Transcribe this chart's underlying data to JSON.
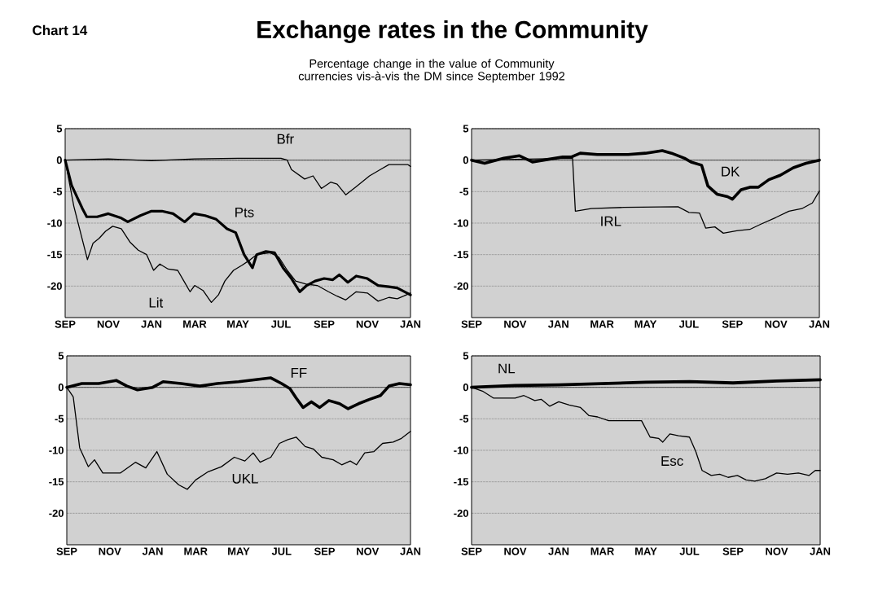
{
  "chart_data": [
    {
      "type": "line",
      "title": "Exchange rates in the Community",
      "subtitle": "Percentage change in the value of Community currencies vis-à-vis the DM since September 1992",
      "annotations": [
        "Chart 14"
      ],
      "xlim": [
        "1992-09-01",
        "1994-01-01"
      ],
      "xticks": [
        {
          "value": "1992-09-01",
          "label": "SEP"
        },
        {
          "value": "1992-11-01",
          "label": "NOV"
        },
        {
          "value": "1993-01-01",
          "label": "JAN"
        },
        {
          "value": "1993-03-01",
          "label": "MAR"
        },
        {
          "value": "1993-05-01",
          "label": "MAY"
        },
        {
          "value": "1993-07-01",
          "label": "JUL"
        },
        {
          "value": "1993-09-01",
          "label": "SEP"
        },
        {
          "value": "1993-11-01",
          "label": "NOV"
        },
        {
          "value": "1994-01-01",
          "label": "JAN"
        }
      ],
      "ylim": [
        -25,
        5
      ],
      "yticks": [
        5,
        0,
        -5,
        -10,
        -15,
        -20
      ],
      "grid": "y",
      "ref_lines": [
        {
          "axis": "y",
          "value": 0,
          "color": "#000000"
        }
      ],
      "series": [
        {
          "name": "Bfr",
          "color": "#000000",
          "x": [
            "1992-09-01",
            "1992-11-01",
            "1993-01-01",
            "1993-03-01",
            "1993-05-01",
            "1993-07-01",
            "1993-07-10",
            "1993-07-16",
            "1993-08-04",
            "1993-08-16",
            "1993-08-28",
            "1993-09-10",
            "1993-09-19",
            "1993-10-01",
            "1993-10-16",
            "1993-11-04",
            "1993-11-19",
            "1993-12-01",
            "1993-12-28",
            "1994-01-01"
          ],
          "values": [
            0,
            0.2,
            -0.1,
            0.2,
            0.3,
            0.3,
            0,
            -1.5,
            -3,
            -2.5,
            -4.5,
            -3.5,
            -3.8,
            -5.5,
            -4.2,
            -2.5,
            -1.5,
            -0.7,
            -0.7,
            -1
          ]
        },
        {
          "name": "Pts",
          "color": "#000000",
          "x": [
            "1992-09-01",
            "1992-09-10",
            "1992-09-25",
            "1992-10-01",
            "1992-10-16",
            "1992-11-01",
            "1992-11-19",
            "1992-11-28",
            "1992-12-16",
            "1993-01-01",
            "1993-01-16",
            "1993-02-01",
            "1993-02-16",
            "1993-02-28",
            "1993-03-16",
            "1993-04-01",
            "1993-04-16",
            "1993-04-28",
            "1993-05-10",
            "1993-05-22",
            "1993-05-28",
            "1993-06-10",
            "1993-06-22",
            "1993-07-04",
            "1993-07-16",
            "1993-07-28",
            "1993-08-07",
            "1993-08-19",
            "1993-09-01",
            "1993-09-13",
            "1993-09-22",
            "1993-10-04",
            "1993-10-16",
            "1993-11-01",
            "1993-11-16",
            "1993-12-01",
            "1993-12-13",
            "1994-01-01"
          ],
          "values": [
            0,
            -4,
            -7.7,
            -9,
            -9,
            -8.5,
            -9.2,
            -9.8,
            -8.8,
            -8.1,
            -8.1,
            -8.5,
            -9.8,
            -8.5,
            -8.8,
            -9.4,
            -10.9,
            -11.5,
            -15,
            -17.1,
            -15,
            -14.5,
            -14.7,
            -17.1,
            -18.8,
            -20.9,
            -19.9,
            -19.2,
            -18.8,
            -19,
            -18.2,
            -19.4,
            -18.4,
            -18.8,
            -19.9,
            -20.1,
            -20.3,
            -21.4
          ]
        },
        {
          "name": "Lit",
          "color": "#000000",
          "x": [
            "1992-09-01",
            "1992-09-13",
            "1992-10-02",
            "1992-10-10",
            "1992-10-19",
            "1992-10-28",
            "1992-11-07",
            "1992-11-19",
            "1992-12-01",
            "1992-12-13",
            "1992-12-25",
            "1993-01-04",
            "1993-01-13",
            "1993-01-25",
            "1993-02-07",
            "1993-02-15",
            "1993-02-23",
            "1993-03-01",
            "1993-03-13",
            "1993-03-25",
            "1993-04-04",
            "1993-04-13",
            "1993-04-25",
            "1993-05-07",
            "1993-05-19",
            "1993-05-28",
            "1993-06-16",
            "1993-06-28",
            "1993-07-10",
            "1993-07-22",
            "1993-08-07",
            "1993-08-22",
            "1993-09-07",
            "1993-09-19",
            "1993-10-01",
            "1993-10-16",
            "1993-11-01",
            "1993-11-16",
            "1993-12-01",
            "1993-12-13",
            "1993-12-22",
            "1994-01-01"
          ],
          "values": [
            0,
            -7.3,
            -15.8,
            -13.2,
            -12.4,
            -11.3,
            -10.5,
            -10.9,
            -13,
            -14.3,
            -15,
            -17.5,
            -16.5,
            -17.3,
            -17.5,
            -19.2,
            -20.9,
            -19.9,
            -20.7,
            -22.6,
            -21.4,
            -19.2,
            -17.5,
            -16.7,
            -15.8,
            -15,
            -14.7,
            -15.4,
            -17.5,
            -19.2,
            -19.7,
            -19.9,
            -20.9,
            -21.6,
            -22.2,
            -20.9,
            -21.1,
            -22.4,
            -21.8,
            -22,
            -21.6,
            -21.1
          ]
        }
      ]
    },
    {
      "type": "line",
      "xlim": [
        "1992-09-01",
        "1994-01-01"
      ],
      "xticks": [
        {
          "value": "1992-09-01",
          "label": "SEP"
        },
        {
          "value": "1992-11-01",
          "label": "NOV"
        },
        {
          "value": "1993-01-01",
          "label": "JAN"
        },
        {
          "value": "1993-03-01",
          "label": "MAR"
        },
        {
          "value": "1993-05-01",
          "label": "MAY"
        },
        {
          "value": "1993-07-01",
          "label": "JUL"
        },
        {
          "value": "1993-09-01",
          "label": "SEP"
        },
        {
          "value": "1993-11-01",
          "label": "NOV"
        },
        {
          "value": "1994-01-01",
          "label": "JAN"
        }
      ],
      "ylim": [
        -25,
        5
      ],
      "yticks": [
        5,
        0,
        -5,
        -10,
        -15,
        -20
      ],
      "grid": "y",
      "ref_lines": [
        {
          "axis": "y",
          "value": 0,
          "color": "#000000"
        }
      ],
      "series": [
        {
          "name": "DK",
          "color": "#000000",
          "x": [
            "1992-09-01",
            "1992-09-19",
            "1992-10-16",
            "1992-11-07",
            "1992-11-25",
            "1992-12-16",
            "1993-01-07",
            "1993-01-19",
            "1993-02-01",
            "1993-02-23",
            "1993-03-16",
            "1993-04-07",
            "1993-05-01",
            "1993-05-25",
            "1993-06-07",
            "1993-06-25",
            "1993-07-04",
            "1993-07-19",
            "1993-07-28",
            "1993-08-10",
            "1993-08-25",
            "1993-09-01",
            "1993-09-13",
            "1993-09-25",
            "1993-10-07",
            "1993-10-22",
            "1993-11-07",
            "1993-11-25",
            "1993-12-13",
            "1994-01-01"
          ],
          "values": [
            0,
            -0.5,
            0.3,
            0.7,
            -0.3,
            0.1,
            0.5,
            0.5,
            1.1,
            0.9,
            0.9,
            0.9,
            1.1,
            1.5,
            1.1,
            0.3,
            -0.3,
            -0.8,
            -4.1,
            -5.4,
            -5.8,
            -6.2,
            -4.7,
            -4.3,
            -4.3,
            -3.1,
            -2.4,
            -1.2,
            -0.5,
            0
          ]
        },
        {
          "name": "IRL",
          "color": "#000000",
          "x": [
            "1992-09-01",
            "1993-01-21",
            "1993-01-25",
            "1993-02-15",
            "1993-04-01",
            "1993-06-16",
            "1993-07-01",
            "1993-07-16",
            "1993-07-25",
            "1993-08-07",
            "1993-08-19",
            "1993-09-07",
            "1993-09-25",
            "1993-10-10",
            "1993-11-01",
            "1993-11-19",
            "1993-12-07",
            "1993-12-22",
            "1994-01-01"
          ],
          "values": [
            0,
            0.3,
            -8.1,
            -7.7,
            -7.5,
            -7.4,
            -8.3,
            -8.4,
            -10.8,
            -10.6,
            -11.6,
            -11.2,
            -11,
            -10.2,
            -9.1,
            -8.1,
            -7.7,
            -6.8,
            -4.9
          ]
        }
      ]
    },
    {
      "type": "line",
      "xlim": [
        "1992-09-01",
        "1994-01-01"
      ],
      "xticks": [
        {
          "value": "1992-09-01",
          "label": "SEP"
        },
        {
          "value": "1992-11-01",
          "label": "NOV"
        },
        {
          "value": "1993-01-01",
          "label": "JAN"
        },
        {
          "value": "1993-03-01",
          "label": "MAR"
        },
        {
          "value": "1993-05-01",
          "label": "MAY"
        },
        {
          "value": "1993-07-01",
          "label": "JUL"
        },
        {
          "value": "1993-09-01",
          "label": "SEP"
        },
        {
          "value": "1993-11-01",
          "label": "NOV"
        },
        {
          "value": "1994-01-01",
          "label": "JAN"
        }
      ],
      "ylim": [
        -25,
        5
      ],
      "yticks": [
        5,
        0,
        -5,
        -10,
        -15,
        -20
      ],
      "grid": "y",
      "ref_lines": [
        {
          "axis": "y",
          "value": 0,
          "color": "#000000"
        }
      ],
      "series": [
        {
          "name": "FF",
          "color": "#000000",
          "x": [
            "1992-09-01",
            "1992-09-22",
            "1992-10-16",
            "1992-11-10",
            "1992-11-25",
            "1992-12-10",
            "1993-01-01",
            "1993-01-16",
            "1993-02-10",
            "1993-03-07",
            "1993-04-01",
            "1993-05-01",
            "1993-06-01",
            "1993-06-16",
            "1993-07-01",
            "1993-07-13",
            "1993-07-22",
            "1993-08-01",
            "1993-08-13",
            "1993-08-25",
            "1993-09-07",
            "1993-09-22",
            "1993-10-04",
            "1993-10-19",
            "1993-11-04",
            "1993-11-19",
            "1993-12-01",
            "1993-12-16",
            "1994-01-01"
          ],
          "values": [
            0,
            0.6,
            0.6,
            1.1,
            0.2,
            -0.4,
            0,
            0.9,
            0.6,
            0.2,
            0.6,
            0.9,
            1.3,
            1.5,
            0.6,
            -0.2,
            -1.7,
            -3.2,
            -2.3,
            -3.2,
            -2.1,
            -2.6,
            -3.4,
            -2.6,
            -1.9,
            -1.3,
            0.2,
            0.6,
            0.4
          ]
        },
        {
          "name": "UKL",
          "color": "#000000",
          "x": [
            "1992-09-01",
            "1992-09-10",
            "1992-09-19",
            "1992-10-01",
            "1992-10-10",
            "1992-10-22",
            "1992-11-16",
            "1992-12-07",
            "1992-12-22",
            "1993-01-07",
            "1993-01-22",
            "1993-02-07",
            "1993-02-18",
            "1993-03-01",
            "1993-03-19",
            "1993-04-07",
            "1993-04-25",
            "1993-05-10",
            "1993-05-22",
            "1993-06-01",
            "1993-06-16",
            "1993-06-28",
            "1993-07-10",
            "1993-07-22",
            "1993-08-04",
            "1993-08-16",
            "1993-08-28",
            "1993-09-13",
            "1993-09-25",
            "1993-10-07",
            "1993-10-16",
            "1993-10-28",
            "1993-11-10",
            "1993-11-22",
            "1993-12-07",
            "1993-12-19",
            "1994-01-01"
          ],
          "values": [
            0,
            -1.5,
            -9.6,
            -12.6,
            -11.5,
            -13.6,
            -13.6,
            -11.9,
            -12.8,
            -10.2,
            -13.8,
            -15.5,
            -16.2,
            -14.7,
            -13.4,
            -12.6,
            -11.1,
            -11.7,
            -10.4,
            -11.9,
            -11.1,
            -8.9,
            -8.3,
            -7.9,
            -9.4,
            -9.8,
            -11.1,
            -11.5,
            -12.3,
            -11.7,
            -12.3,
            -10.4,
            -10.2,
            -8.9,
            -8.7,
            -8.1,
            -7
          ]
        }
      ]
    },
    {
      "type": "line",
      "xlim": [
        "1992-09-01",
        "1994-01-01"
      ],
      "xticks": [
        {
          "value": "1992-09-01",
          "label": "SEP"
        },
        {
          "value": "1992-11-01",
          "label": "NOV"
        },
        {
          "value": "1993-01-01",
          "label": "JAN"
        },
        {
          "value": "1993-03-01",
          "label": "MAR"
        },
        {
          "value": "1993-05-01",
          "label": "MAY"
        },
        {
          "value": "1993-07-01",
          "label": "JUL"
        },
        {
          "value": "1993-09-01",
          "label": "SEP"
        },
        {
          "value": "1993-11-01",
          "label": "NOV"
        },
        {
          "value": "1994-01-01",
          "label": "JAN"
        }
      ],
      "ylim": [
        -25,
        5
      ],
      "yticks": [
        5,
        0,
        -5,
        -10,
        -15,
        -20
      ],
      "grid": "y",
      "ref_lines": [
        {
          "axis": "y",
          "value": 0,
          "color": "#000000"
        }
      ],
      "series": [
        {
          "name": "NL",
          "color": "#000000",
          "x": [
            "1992-09-01",
            "1992-11-01",
            "1993-01-01",
            "1993-03-01",
            "1993-05-01",
            "1993-07-01",
            "1993-09-01",
            "1993-11-01",
            "1994-01-01"
          ],
          "values": [
            0,
            0.3,
            0.4,
            0.6,
            0.8,
            0.9,
            0.7,
            1.0,
            1.2
          ]
        },
        {
          "name": "Esc",
          "color": "#000000",
          "x": [
            "1992-09-01",
            "1992-09-16",
            "1992-10-01",
            "1992-11-01",
            "1992-11-13",
            "1992-11-28",
            "1992-12-07",
            "1992-12-19",
            "1993-01-01",
            "1993-01-16",
            "1993-02-01",
            "1993-02-12",
            "1993-02-23",
            "1993-03-10",
            "1993-04-01",
            "1993-04-25",
            "1993-05-07",
            "1993-05-19",
            "1993-05-25",
            "1993-06-04",
            "1993-06-16",
            "1993-07-01",
            "1993-07-10",
            "1993-07-19",
            "1993-08-01",
            "1993-08-13",
            "1993-08-25",
            "1993-09-07",
            "1993-09-19",
            "1993-10-01",
            "1993-10-16",
            "1993-11-01",
            "1993-11-16",
            "1993-12-01",
            "1993-12-16",
            "1993-12-25",
            "1994-01-01"
          ],
          "values": [
            0,
            -0.6,
            -1.7,
            -1.7,
            -1.3,
            -2.1,
            -1.9,
            -3,
            -2.3,
            -2.8,
            -3.2,
            -4.5,
            -4.7,
            -5.3,
            -5.3,
            -5.3,
            -7.9,
            -8.1,
            -8.7,
            -7.4,
            -7.7,
            -7.9,
            -10.2,
            -13.2,
            -14,
            -13.8,
            -14.3,
            -14,
            -14.7,
            -14.9,
            -14.5,
            -13.6,
            -13.8,
            -13.6,
            -14,
            -13.2,
            -13.2
          ]
        }
      ]
    }
  ]
}
